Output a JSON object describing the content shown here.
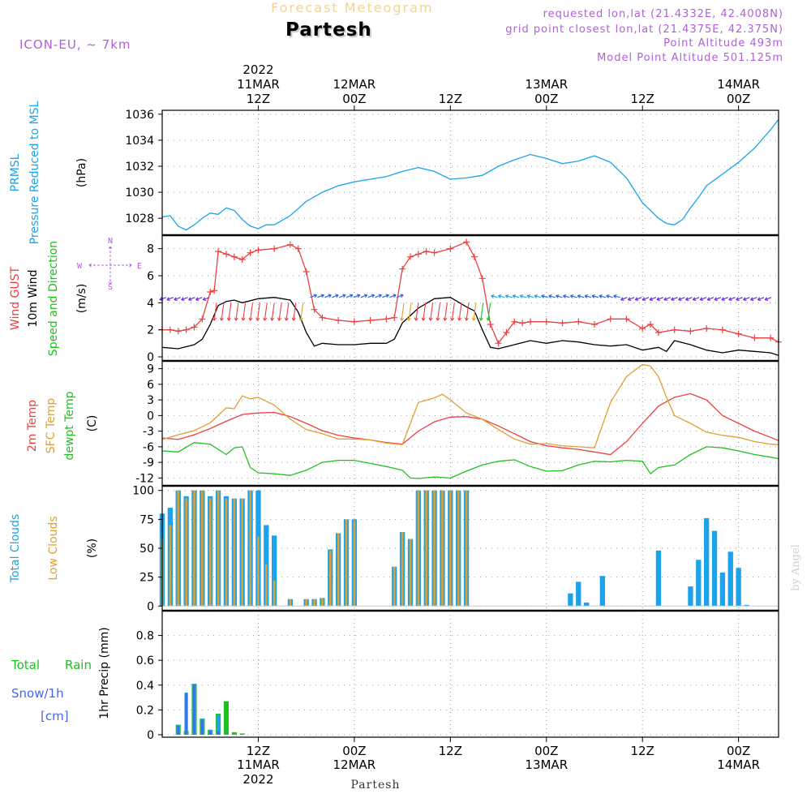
{
  "header": {
    "super_title": "Forecast Meteogram",
    "location": "Partesh",
    "model": "ICON-EU, ~ 7km",
    "requested": "requested lon,lat (21.4332E, 42.4008N)",
    "grid_point": "grid point closest lon,lat (21.4375E, 42.375N)",
    "point_altitude": "Point Altitude 493m",
    "model_altitude": "Model Point Altitude 501.125m",
    "footer_location": "Partesh",
    "watermark": "by Angel"
  },
  "colors": {
    "blue": "#1ca3ec",
    "red": "#ec4040",
    "orange": "#e0a030",
    "green": "#20c020",
    "purple": "#b060d8",
    "violet": "#6a2fd8",
    "snow": "#4466ee",
    "grid": "#999999"
  },
  "time_axis": {
    "range": [
      0,
      77
    ],
    "ticks": [
      {
        "hour": 12,
        "label": "12Z",
        "date": "11MAR",
        "year": "2022"
      },
      {
        "hour": 24,
        "label": "00Z",
        "date": "12MAR",
        "year": ""
      },
      {
        "hour": 36,
        "label": "12Z",
        "date": "",
        "year": ""
      },
      {
        "hour": 48,
        "label": "00Z",
        "date": "13MAR",
        "year": ""
      },
      {
        "hour": 60,
        "label": "12Z",
        "date": "",
        "year": ""
      },
      {
        "hour": 72,
        "label": "00Z",
        "date": "14MAR",
        "year": ""
      }
    ]
  },
  "panels": {
    "pressure": {
      "labels": [
        "PRMSL",
        "Pressure Reduced to MSL"
      ],
      "unit": "(hPa)",
      "ticks": [
        "1028",
        "1030",
        "1032",
        "1034",
        "1036"
      ]
    },
    "wind": {
      "labels": [
        "Wind GUST",
        "10m Wind",
        "Speed and Direction"
      ],
      "unit": "(m/s)",
      "ticks": [
        "0",
        "2",
        "4",
        "6",
        "8"
      ],
      "compass": {
        "n": "N",
        "s": "S",
        "w": "W",
        "e": "E"
      }
    },
    "temp": {
      "labels": [
        "2m Temp",
        "SFC Temp",
        "dewpt Temp"
      ],
      "unit": "(C)",
      "ticks": [
        "-12",
        "-9",
        "-6",
        "-3",
        "0",
        "3",
        "6",
        "9"
      ]
    },
    "clouds": {
      "labels": [
        "Total Clouds",
        "Low Clouds"
      ],
      "unit": "(%)",
      "ticks": [
        "0",
        "25",
        "50",
        "75",
        "100"
      ]
    },
    "precip": {
      "labels": [
        "Total",
        "Rain",
        "Snow/1h",
        "[cm]"
      ],
      "unit": "1hr Precip (mm)",
      "ticks": [
        "0",
        "0.2",
        "0.4",
        "0.6",
        "0.8"
      ]
    }
  },
  "chart_data": [
    {
      "type": "line",
      "title": "PRMSL Pressure Reduced to MSL",
      "ylabel": "(hPa)",
      "ylim": [
        1026.7,
        1036.3
      ],
      "series": [
        {
          "name": "PRMSL",
          "x": [
            0,
            1,
            2,
            3,
            4,
            5,
            6,
            7,
            8,
            9,
            10,
            11,
            12,
            13,
            14,
            16,
            18,
            20,
            22,
            24,
            26,
            28,
            30,
            32,
            34,
            36,
            38,
            40,
            42,
            44,
            46,
            48,
            50,
            52,
            54,
            56,
            58,
            60,
            62,
            63,
            64,
            65,
            66,
            67,
            68,
            70,
            72,
            74,
            76,
            77
          ],
          "y": [
            1028.1,
            1028.2,
            1027.4,
            1027.1,
            1027.5,
            1028.0,
            1028.4,
            1028.3,
            1028.8,
            1028.6,
            1027.9,
            1027.4,
            1027.2,
            1027.5,
            1027.5,
            1028.2,
            1029.3,
            1030.0,
            1030.5,
            1030.8,
            1031.0,
            1031.2,
            1031.6,
            1031.9,
            1031.6,
            1031.0,
            1031.1,
            1031.3,
            1032.0,
            1032.5,
            1032.9,
            1032.6,
            1032.2,
            1032.4,
            1032.8,
            1032.3,
            1031.1,
            1029.2,
            1028.0,
            1027.6,
            1027.5,
            1027.9,
            1028.8,
            1029.6,
            1030.5,
            1031.4,
            1032.3,
            1033.4,
            1034.8,
            1035.6
          ]
        }
      ]
    },
    {
      "type": "line",
      "title": "Wind GUST / 10m Wind",
      "ylabel": "(m/s)",
      "ylim": [
        -0.3,
        9.0
      ],
      "series": [
        {
          "name": "Wind GUST",
          "x": [
            0,
            1,
            2,
            3,
            4,
            5,
            6,
            6.5,
            7,
            8,
            9,
            10,
            11,
            12,
            14,
            16,
            17,
            18,
            19,
            20,
            22,
            24,
            26,
            28,
            29,
            30,
            31,
            32,
            33,
            34,
            36,
            38,
            39,
            40,
            41,
            42,
            43,
            44,
            45,
            46,
            48,
            50,
            52,
            54,
            56,
            58,
            60,
            61,
            62,
            64,
            66,
            68,
            70,
            72,
            74,
            76,
            77
          ],
          "y": [
            2.0,
            2.0,
            1.9,
            2.0,
            2.2,
            2.8,
            4.8,
            4.9,
            7.8,
            7.6,
            7.4,
            7.2,
            7.7,
            7.9,
            8.0,
            8.3,
            8.0,
            6.3,
            3.5,
            2.9,
            2.7,
            2.6,
            2.7,
            2.8,
            2.9,
            6.5,
            7.4,
            7.6,
            7.8,
            7.7,
            8.0,
            8.5,
            7.4,
            5.8,
            2.4,
            1.0,
            1.8,
            2.6,
            2.5,
            2.6,
            2.6,
            2.5,
            2.6,
            2.4,
            2.8,
            2.8,
            2.1,
            2.4,
            1.8,
            2.0,
            1.9,
            2.1,
            2.0,
            1.7,
            1.4,
            1.4,
            1.1
          ]
        },
        {
          "name": "10m Wind",
          "x": [
            0,
            2,
            4,
            5,
            6,
            7,
            8,
            9,
            10,
            12,
            14,
            16,
            17,
            18,
            19,
            20,
            22,
            24,
            26,
            28,
            29,
            30,
            32,
            34,
            36,
            38,
            39,
            40,
            41,
            42,
            44,
            46,
            48,
            50,
            52,
            54,
            56,
            58,
            60,
            62,
            63,
            64,
            66,
            68,
            70,
            72,
            74,
            76,
            77
          ],
          "y": [
            0.7,
            0.6,
            0.9,
            1.3,
            2.4,
            3.8,
            4.1,
            4.2,
            4.0,
            4.3,
            4.4,
            4.2,
            3.3,
            1.8,
            0.8,
            1.0,
            0.9,
            0.9,
            1.0,
            1.0,
            1.3,
            2.5,
            3.6,
            4.3,
            4.4,
            3.7,
            3.4,
            2.0,
            0.7,
            0.6,
            0.9,
            1.2,
            1.0,
            1.2,
            1.1,
            0.9,
            0.8,
            0.9,
            0.5,
            0.7,
            0.4,
            1.2,
            0.9,
            0.5,
            0.3,
            0.5,
            0.4,
            0.3,
            0.1
          ]
        }
      ]
    },
    {
      "type": "line",
      "title": "2m Temp / SFC Temp / dewpt Temp",
      "ylabel": "(C)",
      "ylim": [
        -13.5,
        10.5
      ],
      "series": [
        {
          "name": "2m Temp",
          "x": [
            0,
            2,
            4,
            6,
            8,
            10,
            12,
            14,
            16,
            18,
            20,
            22,
            24,
            26,
            28,
            30,
            32,
            34,
            36,
            38,
            40,
            42,
            44,
            46,
            48,
            50,
            52,
            54,
            56,
            58,
            60,
            62,
            64,
            66,
            68,
            70,
            72,
            74,
            76,
            77
          ],
          "y": [
            -4.3,
            -4.6,
            -3.7,
            -2.5,
            -1.1,
            0.2,
            0.5,
            0.6,
            -0.2,
            -1.5,
            -2.9,
            -3.8,
            -4.3,
            -4.7,
            -5.2,
            -5.5,
            -3.0,
            -1.2,
            -0.3,
            -0.2,
            -0.7,
            -2.0,
            -3.5,
            -5.0,
            -5.8,
            -6.2,
            -6.5,
            -7.0,
            -7.5,
            -5.0,
            -1.5,
            1.8,
            3.5,
            4.2,
            3.0,
            0.0,
            -1.5,
            -3.0,
            -4.2,
            -4.8
          ]
        },
        {
          "name": "SFC Temp",
          "x": [
            0,
            2,
            4,
            6,
            8,
            9,
            10,
            11,
            12,
            14,
            16,
            18,
            20,
            22,
            24,
            26,
            28,
            30,
            32,
            34,
            35,
            36,
            38,
            40,
            42,
            44,
            46,
            48,
            50,
            52,
            54,
            56,
            58,
            60,
            61,
            62,
            63,
            64,
            66,
            68,
            70,
            72,
            74,
            76,
            77
          ],
          "y": [
            -4.6,
            -3.7,
            -2.9,
            -1.4,
            1.5,
            1.3,
            3.8,
            3.2,
            3.5,
            2.0,
            -0.7,
            -2.7,
            -3.5,
            -4.5,
            -4.5,
            -4.7,
            -5.3,
            -5.6,
            2.5,
            3.4,
            4.1,
            3.0,
            0.5,
            -0.7,
            -2.7,
            -4.5,
            -5.5,
            -5.4,
            -5.8,
            -6.0,
            -6.2,
            2.5,
            7.5,
            9.8,
            9.5,
            7.5,
            3.5,
            0.0,
            -1.5,
            -3.2,
            -3.8,
            -4.2,
            -5.0,
            -5.5,
            -5.6
          ]
        },
        {
          "name": "dewpt Temp",
          "x": [
            0,
            2,
            4,
            6,
            8,
            9,
            10,
            11,
            12,
            14,
            16,
            18,
            20,
            22,
            24,
            26,
            28,
            30,
            31,
            32,
            34,
            36,
            38,
            40,
            42,
            44,
            46,
            48,
            50,
            52,
            54,
            56,
            58,
            60,
            61,
            62,
            64,
            66,
            68,
            70,
            72,
            74,
            76,
            77
          ],
          "y": [
            -6.8,
            -7.0,
            -5.2,
            -5.5,
            -7.5,
            -6.2,
            -6.0,
            -10.0,
            -11.0,
            -11.2,
            -11.5,
            -10.5,
            -9.0,
            -8.6,
            -8.6,
            -9.2,
            -9.8,
            -10.5,
            -12.0,
            -12.1,
            -11.8,
            -12.0,
            -10.7,
            -9.5,
            -8.8,
            -8.5,
            -9.8,
            -10.7,
            -10.6,
            -9.5,
            -8.8,
            -8.9,
            -8.6,
            -8.8,
            -11.2,
            -10.0,
            -9.5,
            -7.5,
            -6.0,
            -6.2,
            -6.8,
            -7.5,
            -8.0,
            -8.3
          ]
        }
      ]
    },
    {
      "type": "bar",
      "title": "Total Clouds / Low Clouds",
      "ylabel": "(%)",
      "ylim": [
        -4,
        104
      ],
      "x": [
        0,
        1,
        2,
        3,
        4,
        5,
        6,
        7,
        8,
        9,
        10,
        11,
        12,
        13,
        14,
        15,
        16,
        17,
        18,
        19,
        20,
        21,
        22,
        23,
        24,
        25,
        26,
        27,
        28,
        29,
        30,
        31,
        32,
        33,
        34,
        35,
        36,
        37,
        38,
        39,
        40,
        41,
        42,
        43,
        44,
        45,
        46,
        47,
        48,
        49,
        50,
        51,
        52,
        53,
        54,
        55,
        56,
        57,
        58,
        59,
        60,
        61,
        62,
        63,
        64,
        65,
        66,
        67,
        68,
        69,
        70,
        71,
        72,
        73,
        74,
        75,
        76,
        77
      ],
      "series": [
        {
          "name": "Total Clouds",
          "values": [
            80,
            85,
            100,
            95,
            100,
            100,
            95,
            100,
            95,
            93,
            93,
            100,
            100,
            70,
            61,
            0,
            6,
            0,
            6,
            6,
            7,
            49,
            63,
            75,
            75,
            0,
            0,
            0,
            0,
            34,
            64,
            58,
            100,
            100,
            100,
            100,
            100,
            100,
            100,
            0,
            0,
            0,
            0,
            0,
            0,
            0,
            0,
            0,
            0,
            0,
            0,
            11,
            21,
            3,
            0,
            26,
            0,
            0,
            0,
            0,
            0,
            0,
            48,
            0,
            0,
            0,
            17,
            40,
            76,
            65,
            29,
            47,
            33,
            1,
            0,
            0,
            0,
            0
          ]
        },
        {
          "name": "Low Clouds",
          "values": [
            58,
            70,
            100,
            93,
            100,
            100,
            93,
            100,
            93,
            93,
            93,
            100,
            60,
            36,
            22,
            0,
            6,
            0,
            6,
            6,
            7,
            48,
            63,
            75,
            74,
            0,
            0,
            0,
            0,
            34,
            64,
            58,
            100,
            100,
            100,
            100,
            100,
            100,
            100,
            0,
            0,
            0,
            0,
            0,
            0,
            0,
            0,
            0,
            0,
            0,
            0,
            0,
            0,
            0,
            0,
            0,
            0,
            0,
            0,
            0,
            0,
            0,
            0,
            0,
            0,
            0,
            0,
            0,
            0,
            0,
            0,
            0,
            0,
            0,
            0,
            0,
            0,
            0
          ]
        }
      ]
    },
    {
      "type": "bar",
      "title": "1hr Precip",
      "ylabel": "1hr Precip (mm)",
      "ylim": [
        -0.02,
        1.0
      ],
      "x": [
        2,
        3,
        4,
        5,
        6,
        7,
        8,
        9,
        10
      ],
      "series": [
        {
          "name": "Rain",
          "values": [
            0.08,
            0.03,
            0.41,
            0.13,
            0.04,
            0.17,
            0.27,
            0.02,
            0.01
          ]
        },
        {
          "name": "Total",
          "values": [
            0.08,
            0.34,
            0.41,
            0.13,
            0.04,
            0.16,
            0.01,
            0.0,
            0.0
          ]
        },
        {
          "name": "Snow/1h",
          "values": [
            0.07,
            0.33,
            0.4,
            0.12,
            0.03,
            0.03,
            0.0,
            0.0,
            0.0
          ]
        }
      ]
    }
  ]
}
